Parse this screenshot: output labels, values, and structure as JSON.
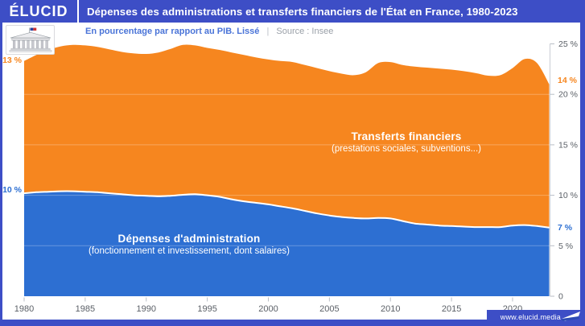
{
  "header": {
    "brand": "ÉLUCID",
    "title": "Dépenses des administrations et transferts financiers de l'État en France, 1980-2023"
  },
  "subtitle": {
    "text": "En pourcentage par rapport au PIB. Lissé",
    "separator": "|",
    "source": "Source : Insee"
  },
  "annotations": {
    "transfers": {
      "title": "Transferts financiers",
      "subtitle": "(prestations sociales, subventions...)"
    },
    "admin": {
      "title": "Dépenses d'administration",
      "subtitle": "(fonctionnement et investissement, dont salaires)"
    }
  },
  "edge_labels": {
    "transfers_start": "13 %",
    "admin_start": "10 %",
    "transfers_end": "14 %",
    "admin_end": "7 %"
  },
  "footer": {
    "url": "www.elucid.media"
  },
  "icons": {
    "logo": "assembly-building-icon",
    "flag": "elucid-pennant-icon"
  },
  "colors": {
    "brand_blue": "#3d4ec6",
    "area_blue": "#2d6fd2",
    "area_orange": "#f6861f",
    "subtitle_blue": "#4a74d8",
    "source_gray": "#9aa0a8",
    "tick_gray": "#5a5f66",
    "axis_gray": "#c9cdd4"
  },
  "chart_data": {
    "type": "area",
    "stacked": true,
    "title": "Dépenses des administrations et transferts financiers de l'État en France, 1980-2023",
    "unit": "% du PIB",
    "xlim": [
      1980,
      2023
    ],
    "ylim": [
      0,
      25
    ],
    "grid": "horizontal, subtle white lines over areas",
    "legend_position": "labels inside areas",
    "x": [
      1980,
      1981,
      1982,
      1983,
      1984,
      1985,
      1986,
      1987,
      1988,
      1989,
      1990,
      1991,
      1992,
      1993,
      1994,
      1995,
      1996,
      1997,
      1998,
      1999,
      2000,
      2001,
      2002,
      2003,
      2004,
      2005,
      2006,
      2007,
      2008,
      2009,
      2010,
      2011,
      2012,
      2013,
      2014,
      2015,
      2016,
      2017,
      2018,
      2019,
      2020,
      2021,
      2022,
      2023
    ],
    "series": [
      {
        "name": "Dépenses d'administration (fonctionnement et investissement, dont salaires)",
        "color": "#2d6fd2",
        "start_label": "10 %",
        "end_label": "7 %",
        "values": [
          10.2,
          10.3,
          10.35,
          10.4,
          10.4,
          10.35,
          10.3,
          10.2,
          10.1,
          10.0,
          9.95,
          9.9,
          9.95,
          10.05,
          10.1,
          10.0,
          9.85,
          9.6,
          9.4,
          9.25,
          9.1,
          8.9,
          8.7,
          8.45,
          8.2,
          8.0,
          7.85,
          7.75,
          7.7,
          7.75,
          7.7,
          7.45,
          7.2,
          7.1,
          7.0,
          6.95,
          6.9,
          6.85,
          6.85,
          6.85,
          7.0,
          7.05,
          6.95,
          6.8
        ]
      },
      {
        "name": "Transferts financiers (prestations sociales, subventions...)",
        "color": "#f6861f",
        "start_label": "13 %",
        "end_label": "14 %",
        "values": [
          13.1,
          13.6,
          14.05,
          14.35,
          14.5,
          14.5,
          14.4,
          14.25,
          14.1,
          14.05,
          14.05,
          14.25,
          14.55,
          14.85,
          14.75,
          14.6,
          14.55,
          14.55,
          14.5,
          14.4,
          14.35,
          14.4,
          14.5,
          14.45,
          14.4,
          14.3,
          14.2,
          14.15,
          14.5,
          15.35,
          15.5,
          15.45,
          15.55,
          15.55,
          15.55,
          15.5,
          15.4,
          15.25,
          15.0,
          15.05,
          15.6,
          16.45,
          16.15,
          14.2
        ]
      }
    ],
    "x_ticks": [
      1980,
      1985,
      1990,
      1995,
      2000,
      2005,
      2010,
      2015,
      2020
    ],
    "x_tick_labels": [
      "1980",
      "1985",
      "1990",
      "1995",
      "2000",
      "2005",
      "2010",
      "2015",
      "2020"
    ],
    "y_ticks": {
      "values": [
        0,
        5,
        10,
        15,
        20,
        25
      ],
      "labels": [
        "0",
        "5 %",
        "10 %",
        "15 %",
        "20 %",
        "25 %"
      ]
    }
  }
}
